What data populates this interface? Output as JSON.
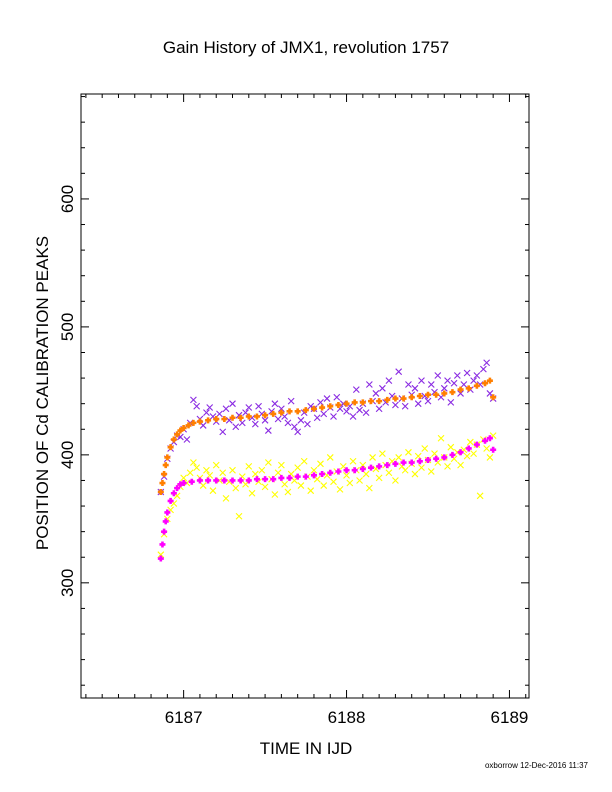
{
  "footer": "oxborrow 12-Dec-2016 11:37",
  "chart_data": {
    "type": "scatter",
    "title": "Gain History of JMX1, revolution 1757",
    "xlabel": "TIME IN IJD",
    "ylabel": "POSITION OF Cd CALIBRATION PEAKS",
    "xlim": [
      6186.37,
      6189.12
    ],
    "ylim": [
      210,
      682
    ],
    "xticks": [
      6187,
      6188,
      6189
    ],
    "xtick_labels": [
      "6187",
      "6188",
      "6189"
    ],
    "yticks": [
      300,
      400,
      500,
      600
    ],
    "ytick_labels": [
      "300",
      "400",
      "500",
      "600"
    ],
    "grid": false,
    "legend": "none",
    "series": [
      {
        "marker": "x",
        "color": "#8a2be2",
        "points": [
          [
            6186.86,
            371
          ],
          [
            6186.88,
            383
          ],
          [
            6186.9,
            397
          ],
          [
            6186.92,
            405
          ],
          [
            6186.94,
            410
          ],
          [
            6186.96,
            415
          ],
          [
            6186.98,
            414
          ],
          [
            6187.0,
            420
          ],
          [
            6187.02,
            412
          ],
          [
            6187.04,
            425
          ],
          [
            6187.06,
            443
          ],
          [
            6187.08,
            438
          ],
          [
            6187.1,
            428
          ],
          [
            6187.12,
            423
          ],
          [
            6187.14,
            433
          ],
          [
            6187.16,
            437
          ],
          [
            6187.18,
            430
          ],
          [
            6187.2,
            426
          ],
          [
            6187.22,
            432
          ],
          [
            6187.24,
            418
          ],
          [
            6187.26,
            436
          ],
          [
            6187.28,
            427
          ],
          [
            6187.3,
            440
          ],
          [
            6187.32,
            422
          ],
          [
            6187.34,
            431
          ],
          [
            6187.36,
            425
          ],
          [
            6187.38,
            433
          ],
          [
            6187.4,
            437
          ],
          [
            6187.42,
            429
          ],
          [
            6187.44,
            424
          ],
          [
            6187.46,
            438
          ],
          [
            6187.48,
            432
          ],
          [
            6187.5,
            427
          ],
          [
            6187.52,
            419
          ],
          [
            6187.54,
            434
          ],
          [
            6187.56,
            440
          ],
          [
            6187.58,
            428
          ],
          [
            6187.6,
            436
          ],
          [
            6187.62,
            430
          ],
          [
            6187.64,
            425
          ],
          [
            6187.66,
            442
          ],
          [
            6187.68,
            422
          ],
          [
            6187.7,
            418
          ],
          [
            6187.72,
            427
          ],
          [
            6187.74,
            433
          ],
          [
            6187.76,
            424
          ],
          [
            6187.78,
            438
          ],
          [
            6187.8,
            436
          ],
          [
            6187.82,
            429
          ],
          [
            6187.84,
            441
          ],
          [
            6187.86,
            432
          ],
          [
            6187.88,
            444
          ],
          [
            6187.9,
            437
          ],
          [
            6187.92,
            430
          ],
          [
            6187.94,
            445
          ],
          [
            6187.96,
            436
          ],
          [
            6187.98,
            440
          ],
          [
            6188.0,
            434
          ],
          [
            6188.02,
            438
          ],
          [
            6188.04,
            430
          ],
          [
            6188.06,
            451
          ],
          [
            6188.08,
            435
          ],
          [
            6188.1,
            440
          ],
          [
            6188.12,
            433
          ],
          [
            6188.14,
            455
          ],
          [
            6188.16,
            442
          ],
          [
            6188.18,
            448
          ],
          [
            6188.2,
            436
          ],
          [
            6188.22,
            452
          ],
          [
            6188.24,
            441
          ],
          [
            6188.26,
            458
          ],
          [
            6188.28,
            446
          ],
          [
            6188.3,
            439
          ],
          [
            6188.32,
            465
          ],
          [
            6188.34,
            444
          ],
          [
            6188.36,
            438
          ],
          [
            6188.38,
            455
          ],
          [
            6188.4,
            447
          ],
          [
            6188.42,
            452
          ],
          [
            6188.44,
            440
          ],
          [
            6188.46,
            458
          ],
          [
            6188.48,
            446
          ],
          [
            6188.5,
            442
          ],
          [
            6188.52,
            455
          ],
          [
            6188.54,
            449
          ],
          [
            6188.56,
            462
          ],
          [
            6188.58,
            445
          ],
          [
            6188.6,
            452
          ],
          [
            6188.62,
            458
          ],
          [
            6188.64,
            441
          ],
          [
            6188.66,
            456
          ],
          [
            6188.68,
            462
          ],
          [
            6188.7,
            448
          ],
          [
            6188.72,
            455
          ],
          [
            6188.74,
            464
          ],
          [
            6188.76,
            451
          ],
          [
            6188.78,
            458
          ],
          [
            6188.8,
            462
          ],
          [
            6188.82,
            455
          ],
          [
            6188.84,
            467
          ],
          [
            6188.86,
            472
          ],
          [
            6188.88,
            448
          ],
          [
            6188.9,
            444
          ]
        ]
      },
      {
        "marker": "+",
        "color": "#ff7f00",
        "points": [
          [
            6186.86,
            371
          ],
          [
            6186.87,
            378
          ],
          [
            6186.88,
            385
          ],
          [
            6186.89,
            392
          ],
          [
            6186.9,
            398
          ],
          [
            6186.92,
            406
          ],
          [
            6186.94,
            412
          ],
          [
            6186.96,
            416
          ],
          [
            6186.98,
            419
          ],
          [
            6187.0,
            421
          ],
          [
            6187.03,
            423
          ],
          [
            6187.06,
            425
          ],
          [
            6187.1,
            426
          ],
          [
            6187.15,
            427
          ],
          [
            6187.2,
            428
          ],
          [
            6187.25,
            428
          ],
          [
            6187.3,
            429
          ],
          [
            6187.35,
            429
          ],
          [
            6187.4,
            430
          ],
          [
            6187.45,
            430
          ],
          [
            6187.5,
            431
          ],
          [
            6187.55,
            432
          ],
          [
            6187.6,
            433
          ],
          [
            6187.65,
            434
          ],
          [
            6187.7,
            434
          ],
          [
            6187.75,
            435
          ],
          [
            6187.8,
            436
          ],
          [
            6187.85,
            437
          ],
          [
            6187.9,
            438
          ],
          [
            6187.95,
            439
          ],
          [
            6188.0,
            440
          ],
          [
            6188.05,
            441
          ],
          [
            6188.1,
            441
          ],
          [
            6188.15,
            442
          ],
          [
            6188.2,
            442
          ],
          [
            6188.25,
            443
          ],
          [
            6188.3,
            444
          ],
          [
            6188.35,
            444
          ],
          [
            6188.4,
            445
          ],
          [
            6188.45,
            446
          ],
          [
            6188.5,
            447
          ],
          [
            6188.55,
            447
          ],
          [
            6188.6,
            448
          ],
          [
            6188.65,
            449
          ],
          [
            6188.7,
            451
          ],
          [
            6188.75,
            452
          ],
          [
            6188.8,
            454
          ],
          [
            6188.85,
            456
          ],
          [
            6188.88,
            458
          ],
          [
            6188.9,
            445
          ]
        ]
      },
      {
        "marker": "x",
        "color": "#ffff00",
        "points": [
          [
            6186.86,
            322
          ],
          [
            6186.88,
            338
          ],
          [
            6186.9,
            350
          ],
          [
            6186.92,
            357
          ],
          [
            6186.94,
            362
          ],
          [
            6186.96,
            368
          ],
          [
            6186.98,
            375
          ],
          [
            6187.0,
            382
          ],
          [
            6187.02,
            378
          ],
          [
            6187.04,
            386
          ],
          [
            6187.06,
            394
          ],
          [
            6187.08,
            390
          ],
          [
            6187.1,
            382
          ],
          [
            6187.12,
            376
          ],
          [
            6187.14,
            388
          ],
          [
            6187.16,
            384
          ],
          [
            6187.18,
            372
          ],
          [
            6187.2,
            392
          ],
          [
            6187.22,
            380
          ],
          [
            6187.24,
            386
          ],
          [
            6187.26,
            366
          ],
          [
            6187.28,
            379
          ],
          [
            6187.3,
            388
          ],
          [
            6187.32,
            374
          ],
          [
            6187.34,
            352
          ],
          [
            6187.36,
            383
          ],
          [
            6187.38,
            377
          ],
          [
            6187.4,
            391
          ],
          [
            6187.42,
            370
          ],
          [
            6187.44,
            385
          ],
          [
            6187.46,
            379
          ],
          [
            6187.48,
            388
          ],
          [
            6187.5,
            375
          ],
          [
            6187.52,
            394
          ],
          [
            6187.54,
            381
          ],
          [
            6187.56,
            369
          ],
          [
            6187.58,
            386
          ],
          [
            6187.6,
            392
          ],
          [
            6187.62,
            377
          ],
          [
            6187.64,
            371
          ],
          [
            6187.66,
            385
          ],
          [
            6187.68,
            380
          ],
          [
            6187.7,
            390
          ],
          [
            6187.72,
            376
          ],
          [
            6187.74,
            395
          ],
          [
            6187.76,
            383
          ],
          [
            6187.78,
            372
          ],
          [
            6187.8,
            388
          ],
          [
            6187.82,
            381
          ],
          [
            6187.84,
            393
          ],
          [
            6187.86,
            376
          ],
          [
            6187.88,
            384
          ],
          [
            6187.9,
            398
          ],
          [
            6187.92,
            379
          ],
          [
            6187.94,
            387
          ],
          [
            6187.96,
            373
          ],
          [
            6187.98,
            391
          ],
          [
            6188.0,
            384
          ],
          [
            6188.02,
            378
          ],
          [
            6188.04,
            395
          ],
          [
            6188.06,
            388
          ],
          [
            6188.08,
            380
          ],
          [
            6188.1,
            392
          ],
          [
            6188.12,
            385
          ],
          [
            6188.14,
            374
          ],
          [
            6188.16,
            398
          ],
          [
            6188.18,
            389
          ],
          [
            6188.2,
            382
          ],
          [
            6188.22,
            401
          ],
          [
            6188.24,
            392
          ],
          [
            6188.26,
            386
          ],
          [
            6188.28,
            395
          ],
          [
            6188.3,
            380
          ],
          [
            6188.32,
            398
          ],
          [
            6188.34,
            391
          ],
          [
            6188.36,
            388
          ],
          [
            6188.38,
            402
          ],
          [
            6188.4,
            393
          ],
          [
            6188.42,
            385
          ],
          [
            6188.44,
            399
          ],
          [
            6188.46,
            390
          ],
          [
            6188.48,
            405
          ],
          [
            6188.5,
            396
          ],
          [
            6188.52,
            387
          ],
          [
            6188.54,
            401
          ],
          [
            6188.56,
            394
          ],
          [
            6188.58,
            413
          ],
          [
            6188.6,
            398
          ],
          [
            6188.62,
            391
          ],
          [
            6188.64,
            406
          ],
          [
            6188.66,
            397
          ],
          [
            6188.68,
            402
          ],
          [
            6188.7,
            392
          ],
          [
            6188.72,
            404
          ],
          [
            6188.74,
            399
          ],
          [
            6188.76,
            410
          ],
          [
            6188.78,
            401
          ],
          [
            6188.8,
            408
          ],
          [
            6188.82,
            368
          ],
          [
            6188.84,
            412
          ],
          [
            6188.86,
            405
          ],
          [
            6188.88,
            398
          ],
          [
            6188.9,
            415
          ]
        ]
      },
      {
        "marker": "+",
        "color": "#ff00ff",
        "points": [
          [
            6186.86,
            319
          ],
          [
            6186.87,
            330
          ],
          [
            6186.88,
            340
          ],
          [
            6186.89,
            348
          ],
          [
            6186.9,
            355
          ],
          [
            6186.92,
            364
          ],
          [
            6186.94,
            370
          ],
          [
            6186.96,
            374
          ],
          [
            6186.98,
            377
          ],
          [
            6187.0,
            378
          ],
          [
            6187.05,
            379
          ],
          [
            6187.1,
            380
          ],
          [
            6187.15,
            380
          ],
          [
            6187.2,
            380
          ],
          [
            6187.25,
            380
          ],
          [
            6187.3,
            380
          ],
          [
            6187.35,
            380
          ],
          [
            6187.4,
            380
          ],
          [
            6187.45,
            381
          ],
          [
            6187.5,
            381
          ],
          [
            6187.55,
            381
          ],
          [
            6187.6,
            382
          ],
          [
            6187.65,
            382
          ],
          [
            6187.7,
            383
          ],
          [
            6187.75,
            383
          ],
          [
            6187.8,
            384
          ],
          [
            6187.85,
            385
          ],
          [
            6187.9,
            386
          ],
          [
            6187.95,
            387
          ],
          [
            6188.0,
            388
          ],
          [
            6188.05,
            388
          ],
          [
            6188.1,
            389
          ],
          [
            6188.15,
            390
          ],
          [
            6188.2,
            391
          ],
          [
            6188.25,
            392
          ],
          [
            6188.3,
            393
          ],
          [
            6188.35,
            394
          ],
          [
            6188.4,
            394
          ],
          [
            6188.45,
            395
          ],
          [
            6188.5,
            396
          ],
          [
            6188.55,
            397
          ],
          [
            6188.6,
            398
          ],
          [
            6188.65,
            400
          ],
          [
            6188.7,
            402
          ],
          [
            6188.75,
            405
          ],
          [
            6188.8,
            408
          ],
          [
            6188.85,
            411
          ],
          [
            6188.88,
            413
          ],
          [
            6188.9,
            404
          ]
        ]
      }
    ]
  }
}
